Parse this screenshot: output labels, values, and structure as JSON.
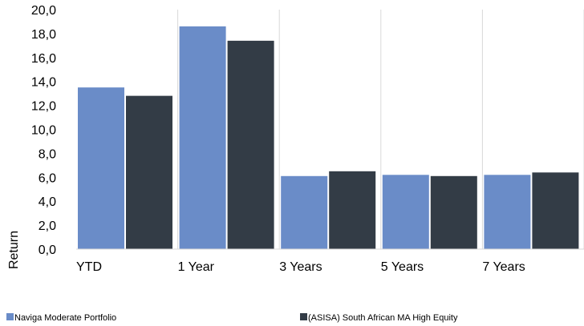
{
  "chart_data": {
    "type": "bar",
    "categories": [
      "YTD",
      "1 Year",
      "3 Years",
      "5 Years",
      "7 Years"
    ],
    "series": [
      {
        "name": "Naviga Moderate Portfolio",
        "color": "#6A8CC8",
        "values": [
          13.5,
          18.6,
          6.1,
          6.2,
          6.2
        ]
      },
      {
        "name": "(ASISA) South African MA High Equity",
        "color": "#333C46",
        "values": [
          12.8,
          17.4,
          6.5,
          6.1,
          6.4
        ]
      }
    ],
    "xlabel": "",
    "ylabel": "Return",
    "ylim": [
      0,
      20
    ],
    "yticks": [
      "0,0",
      "2,0",
      "4,0",
      "6,0",
      "8,0",
      "10,0",
      "12,0",
      "14,0",
      "16,0",
      "18,0",
      "20,0"
    ],
    "grid": "vertical-only",
    "legend": "bottom"
  }
}
